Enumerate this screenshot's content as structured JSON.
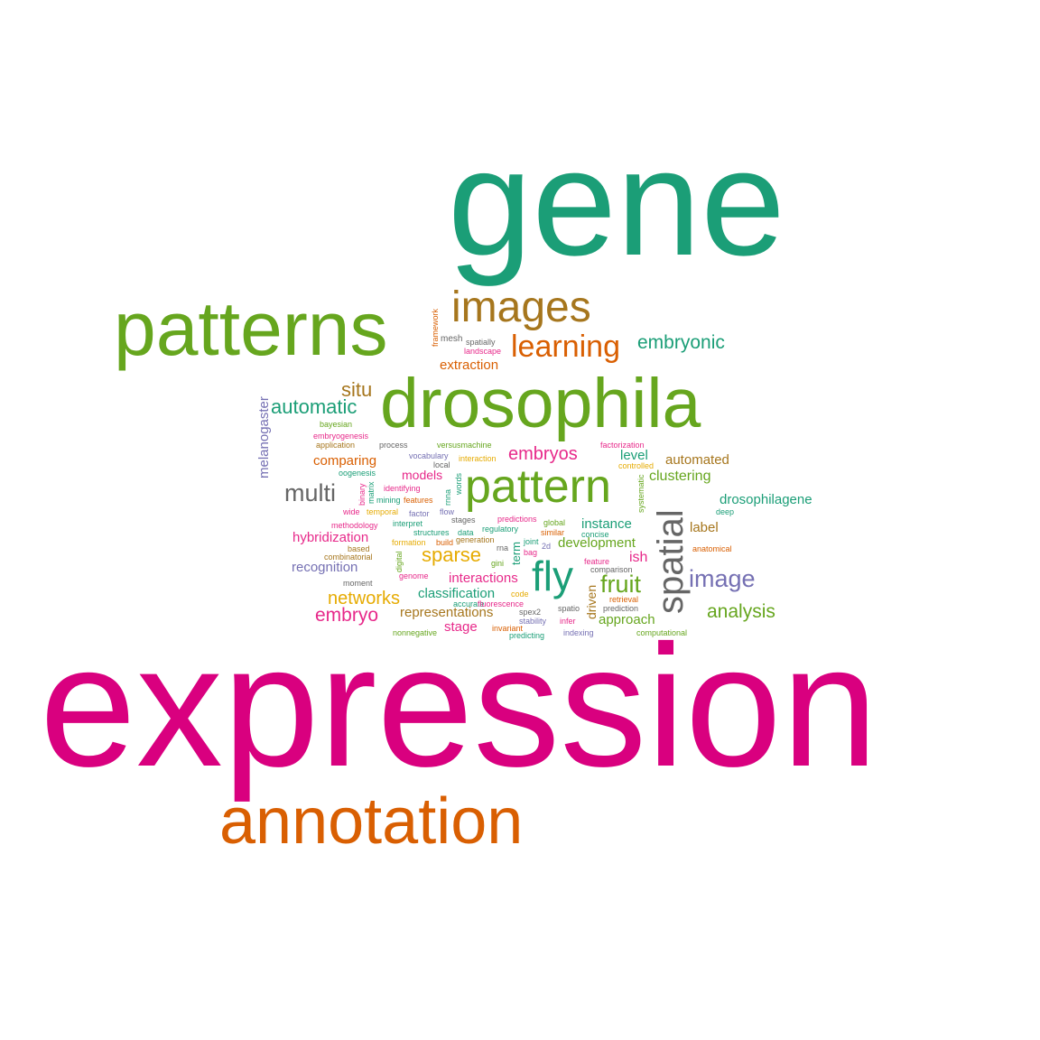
{
  "colors": {
    "teal": "#1b9e77",
    "orange": "#d95f02",
    "purple": "#7570b3",
    "magenta": "#e7298a",
    "pink": "#d9007f",
    "green": "#66a61e",
    "green2": "#4f9a1f",
    "gold": "#e6ab02",
    "brown": "#a6761d",
    "gray": "#666666"
  },
  "words": [
    {
      "text": "gene",
      "color": "teal"
    },
    {
      "text": "patterns",
      "color": "green"
    },
    {
      "text": "images",
      "color": "brown"
    },
    {
      "text": "learning",
      "color": "orange"
    },
    {
      "text": "embryonic",
      "color": "teal"
    },
    {
      "text": "framework",
      "color": "orange"
    },
    {
      "text": "mesh",
      "color": "gray"
    },
    {
      "text": "spatially",
      "color": "gray"
    },
    {
      "text": "landscape",
      "color": "magenta"
    },
    {
      "text": "extraction",
      "color": "orange"
    },
    {
      "text": "drosophila",
      "color": "green"
    },
    {
      "text": "melanogaster",
      "color": "purple"
    },
    {
      "text": "situ",
      "color": "brown"
    },
    {
      "text": "automatic",
      "color": "teal"
    },
    {
      "text": "bayesian",
      "color": "green"
    },
    {
      "text": "embryogenesis",
      "color": "magenta"
    },
    {
      "text": "application",
      "color": "brown"
    },
    {
      "text": "process",
      "color": "gray"
    },
    {
      "text": "versusmachine",
      "color": "green"
    },
    {
      "text": "factorization",
      "color": "magenta"
    },
    {
      "text": "embryos",
      "color": "magenta"
    },
    {
      "text": "vocabulary",
      "color": "purple"
    },
    {
      "text": "interaction",
      "color": "gold"
    },
    {
      "text": "local",
      "color": "gray"
    },
    {
      "text": "level",
      "color": "teal"
    },
    {
      "text": "controlled",
      "color": "gold"
    },
    {
      "text": "automated",
      "color": "brown"
    },
    {
      "text": "comparing",
      "color": "orange"
    },
    {
      "text": "oogenesis",
      "color": "teal"
    },
    {
      "text": "models",
      "color": "magenta"
    },
    {
      "text": "identifying",
      "color": "magenta"
    },
    {
      "text": "binary",
      "color": "magenta"
    },
    {
      "text": "matrix",
      "color": "teal"
    },
    {
      "text": "rnna",
      "color": "teal"
    },
    {
      "text": "words",
      "color": "teal"
    },
    {
      "text": "pattern",
      "color": "green"
    },
    {
      "text": "systematic",
      "color": "green"
    },
    {
      "text": "clustering",
      "color": "green"
    },
    {
      "text": "multi",
      "color": "gray"
    },
    {
      "text": "mining",
      "color": "teal"
    },
    {
      "text": "features",
      "color": "orange"
    },
    {
      "text": "drosophilagene",
      "color": "teal"
    },
    {
      "text": "wide",
      "color": "magenta"
    },
    {
      "text": "temporal",
      "color": "gold"
    },
    {
      "text": "factor",
      "color": "purple"
    },
    {
      "text": "flow",
      "color": "purple"
    },
    {
      "text": "stages",
      "color": "gray"
    },
    {
      "text": "predictions",
      "color": "magenta"
    },
    {
      "text": "global",
      "color": "green"
    },
    {
      "text": "instance",
      "color": "teal"
    },
    {
      "text": "spatial",
      "color": "gray"
    },
    {
      "text": "deep",
      "color": "teal"
    },
    {
      "text": "methodology",
      "color": "magenta"
    },
    {
      "text": "interpret",
      "color": "teal"
    },
    {
      "text": "structures",
      "color": "teal"
    },
    {
      "text": "data",
      "color": "teal"
    },
    {
      "text": "regulatory",
      "color": "teal"
    },
    {
      "text": "similar",
      "color": "orange"
    },
    {
      "text": "concise",
      "color": "teal"
    },
    {
      "text": "label",
      "color": "brown"
    },
    {
      "text": "hybridization",
      "color": "magenta"
    },
    {
      "text": "formation",
      "color": "gold"
    },
    {
      "text": "build",
      "color": "orange"
    },
    {
      "text": "generation",
      "color": "brown"
    },
    {
      "text": "term",
      "color": "teal"
    },
    {
      "text": "joint",
      "color": "teal"
    },
    {
      "text": "development",
      "color": "green"
    },
    {
      "text": "based",
      "color": "brown"
    },
    {
      "text": "rna",
      "color": "gray"
    },
    {
      "text": "2d",
      "color": "purple"
    },
    {
      "text": "combinatorial",
      "color": "brown"
    },
    {
      "text": "digital",
      "color": "green"
    },
    {
      "text": "sparse",
      "color": "gold"
    },
    {
      "text": "bag",
      "color": "magenta"
    },
    {
      "text": "anatomical",
      "color": "orange"
    },
    {
      "text": "gini",
      "color": "green"
    },
    {
      "text": "feature",
      "color": "magenta"
    },
    {
      "text": "ish",
      "color": "magenta"
    },
    {
      "text": "recognition",
      "color": "purple"
    },
    {
      "text": "fly",
      "color": "teal"
    },
    {
      "text": "comparison",
      "color": "gray"
    },
    {
      "text": "genome",
      "color": "magenta"
    },
    {
      "text": "interactions",
      "color": "magenta"
    },
    {
      "text": "image",
      "color": "purple"
    },
    {
      "text": "moment",
      "color": "gray"
    },
    {
      "text": "fruit",
      "color": "green"
    },
    {
      "text": "classification",
      "color": "teal"
    },
    {
      "text": "code",
      "color": "gold"
    },
    {
      "text": "accurate",
      "color": "teal"
    },
    {
      "text": "fluorescence",
      "color": "magenta"
    },
    {
      "text": "networks",
      "color": "gold"
    },
    {
      "text": "spatio",
      "color": "gray"
    },
    {
      "text": "retrieval",
      "color": "orange"
    },
    {
      "text": "driven",
      "color": "brown"
    },
    {
      "text": "prediction",
      "color": "gray"
    },
    {
      "text": "representations",
      "color": "brown"
    },
    {
      "text": "spex2",
      "color": "gray"
    },
    {
      "text": "embryo",
      "color": "magenta"
    },
    {
      "text": "stability",
      "color": "purple"
    },
    {
      "text": "infer",
      "color": "magenta"
    },
    {
      "text": "approach",
      "color": "green"
    },
    {
      "text": "analysis",
      "color": "green"
    },
    {
      "text": "stage",
      "color": "magenta"
    },
    {
      "text": "invariant",
      "color": "orange"
    },
    {
      "text": "nonnegative",
      "color": "green"
    },
    {
      "text": "predicting",
      "color": "teal"
    },
    {
      "text": "indexing",
      "color": "purple"
    },
    {
      "text": "computational",
      "color": "green"
    },
    {
      "text": "expression",
      "color": "pink"
    },
    {
      "text": "annotation",
      "color": "orange"
    }
  ]
}
